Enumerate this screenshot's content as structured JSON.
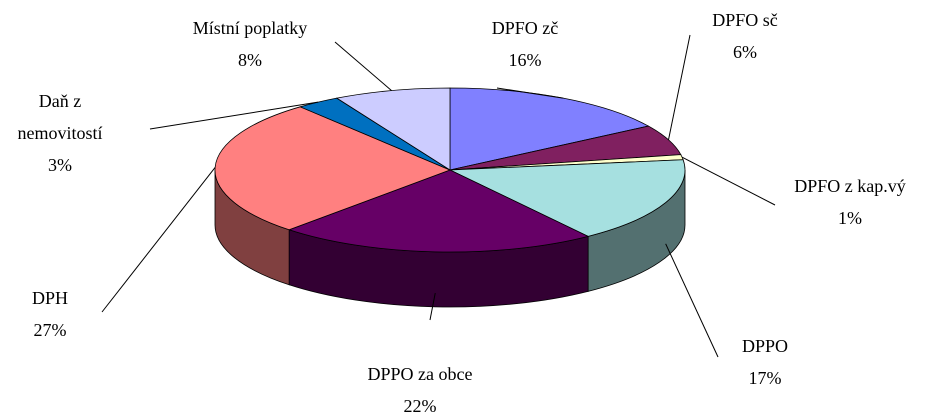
{
  "chart_data": {
    "type": "pie",
    "categories": [
      "DPFO zč",
      "DPFO sč",
      "DPFO z kap.vý",
      "DPPO",
      "DPPO za obce",
      "DPH",
      "Daň z nemovitostí",
      "Místní poplatky"
    ],
    "values": [
      16,
      6,
      1,
      17,
      22,
      27,
      3,
      8
    ],
    "value_labels": [
      "16%",
      "6%",
      "1%",
      "17%",
      "22%",
      "27%",
      "3%",
      "8%"
    ],
    "colors": [
      "#8080ff",
      "#802060",
      "#ffffcc",
      "#a6e0e0",
      "#660066",
      "#ff8080",
      "#0070c0",
      "#ccccff"
    ]
  }
}
